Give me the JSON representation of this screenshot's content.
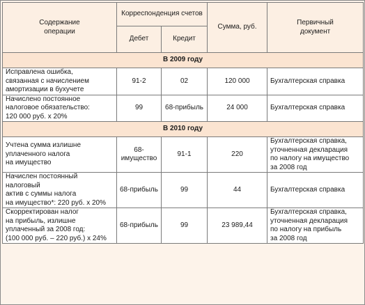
{
  "header": {
    "col_content": "Содержание\nоперации",
    "col_correspondence": "Корреспонденция счетов",
    "col_debit": "Дебет",
    "col_credit": "Кредит",
    "col_sum": "Сумма, руб.",
    "col_doc": "Первичный\nдокумент"
  },
  "sections": [
    {
      "year": "В 2009 году",
      "rows": [
        {
          "content": "Исправлена ошибка,\nсвязанная с начислением\nамортизации в бухучете",
          "debit": "91-2",
          "credit": "02",
          "sum": "120 000",
          "doc": "Бухгалтерская справка"
        },
        {
          "content": "Начислено постоянное\nналоговое обязательство:\n120 000 руб. х 20%",
          "debit": "99",
          "credit": "68-прибыль",
          "sum": "24 000",
          "doc": "Бухгалтерская справка"
        }
      ]
    },
    {
      "year": "В 2010 году",
      "rows": [
        {
          "content": "Учтена сумма излишне\nуплаченного налога\nна имущество",
          "debit": "68-\nимущество",
          "credit": "91-1",
          "sum": "220",
          "doc": "Бухгалтерская справка,\nуточненная декларация\nпо налогу на имущество\nза 2008 год"
        },
        {
          "content": "Начислен постоянный налоговый\nактив с суммы налога\nна имущество*: 220 руб. х 20%",
          "debit": "68-прибыль",
          "credit": "99",
          "sum": "44",
          "doc": "Бухгалтерская справка"
        },
        {
          "content": "Скорректирован налог\nна прибыль, излишне\nуплаченный за 2008 год:\n(100 000 руб. – 220 руб.) х 24%",
          "debit": "68-прибыль",
          "credit": "99",
          "sum": "23 989,44",
          "doc": "Бухгалтерская справка,\nуточненная декларация\nпо налогу на прибыль\nза 2008 год"
        }
      ]
    }
  ]
}
